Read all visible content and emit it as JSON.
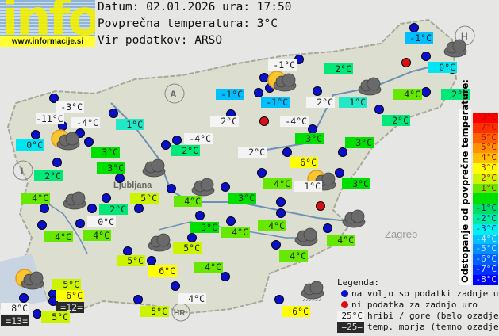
{
  "logo": {
    "text": "info",
    "url": "www.informacije.si"
  },
  "header": {
    "date_line": "Datum: 02.01.2026 ura: 17:50",
    "avg_line": "Povprečna temperatura: 3°C",
    "source_line": "Vir podatkov: ARSO"
  },
  "map_labels": [
    "A",
    "I",
    "H",
    "HR",
    "Ljubljana",
    "Zagreb"
  ],
  "stations": [
    {
      "temp": "-1°C",
      "type": "normal"
    },
    {
      "temp": "-1°C",
      "type": "hill"
    },
    {
      "temp": "2°C",
      "type": "normal"
    },
    {
      "temp": "0°C",
      "type": "normal"
    },
    {
      "temp": "-1°C",
      "type": "normal"
    },
    {
      "temp": "-1°C",
      "type": "normal"
    },
    {
      "temp": "2°C",
      "type": "hill"
    },
    {
      "temp": "1°C",
      "type": "normal"
    },
    {
      "temp": "4°C",
      "type": "normal"
    },
    {
      "temp": "2°C",
      "type": "normal"
    },
    {
      "temp": "-3°C",
      "type": "hill"
    },
    {
      "temp": "-11°C",
      "type": "hill"
    },
    {
      "temp": "-4°C",
      "type": "hill"
    },
    {
      "temp": "1°C",
      "type": "normal"
    },
    {
      "temp": "2°C",
      "type": "hill"
    },
    {
      "temp": "-4°C",
      "type": "hill"
    },
    {
      "temp": "2°C",
      "type": "normal"
    },
    {
      "temp": "0°C",
      "type": "normal"
    },
    {
      "temp": "3°C",
      "type": "normal"
    },
    {
      "temp": "2°C",
      "type": "normal"
    },
    {
      "temp": "-4°C",
      "type": "hill"
    },
    {
      "temp": "3°C",
      "type": "normal"
    },
    {
      "temp": "3°C",
      "type": "normal"
    },
    {
      "temp": "2°C",
      "type": "hill"
    },
    {
      "temp": "6°C",
      "type": "normal"
    },
    {
      "temp": "3°C",
      "type": "normal"
    },
    {
      "temp": "2°C",
      "type": "normal"
    },
    {
      "temp": "4°C",
      "type": "normal"
    },
    {
      "temp": "1°C",
      "type": "hill"
    },
    {
      "temp": "3°C",
      "type": "normal"
    },
    {
      "temp": "4°C",
      "type": "normal"
    },
    {
      "temp": "5°C",
      "type": "normal"
    },
    {
      "temp": "4°C",
      "type": "normal"
    },
    {
      "temp": "3°C",
      "type": "normal"
    },
    {
      "temp": "2°C",
      "type": "normal"
    },
    {
      "temp": "0°C",
      "type": "hill"
    },
    {
      "temp": "4°C",
      "type": "normal"
    },
    {
      "temp": "4°C",
      "type": "normal"
    },
    {
      "temp": "3°C",
      "type": "normal"
    },
    {
      "temp": "4°C",
      "type": "normal"
    },
    {
      "temp": "4°C",
      "type": "normal"
    },
    {
      "temp": "4°C",
      "type": "normal"
    },
    {
      "temp": "4°C",
      "type": "normal"
    },
    {
      "temp": "5°C",
      "type": "normal"
    },
    {
      "temp": "5°C",
      "type": "normal"
    },
    {
      "temp": "6°C",
      "type": "normal"
    },
    {
      "temp": "4°C",
      "type": "normal"
    },
    {
      "temp": "5°C",
      "type": "normal"
    },
    {
      "temp": "6°C",
      "type": "normal"
    },
    {
      "temp": "=12=",
      "type": "sea"
    },
    {
      "temp": "8°C",
      "type": "hill"
    },
    {
      "temp": "=13=",
      "type": "sea"
    },
    {
      "temp": "5°C",
      "type": "normal"
    },
    {
      "temp": "4°C",
      "type": "hill"
    },
    {
      "temp": "5°C",
      "type": "normal"
    },
    {
      "temp": "6°C",
      "type": "normal"
    }
  ],
  "weather_icons": [
    "cloudy",
    "cloudy",
    "sun-cloud",
    "cloudy",
    "sun-cloud",
    "cloudy",
    "cloudy",
    "sun-cloud",
    "cloudy",
    "cloudy",
    "cloudy",
    "sun-cloud",
    "rain"
  ],
  "scale": {
    "title": "Odstopanje od povprečne temperature:",
    "steps": [
      {
        "label": "8°C",
        "color": "#ff0000"
      },
      {
        "label": "7°C",
        "color": "#ff3000"
      },
      {
        "label": "6°C",
        "color": "#ff6000"
      },
      {
        "label": "5°C",
        "color": "#ff9000"
      },
      {
        "label": "4°C",
        "color": "#ffc000"
      },
      {
        "label": "3°C",
        "color": "#ffff00"
      },
      {
        "label": "2°C",
        "color": "#ccf400"
      },
      {
        "label": "1°C",
        "color": "#66e800"
      },
      {
        "label": "",
        "color": "#00e000"
      },
      {
        "label": "-1°C",
        "color": "#00e060"
      },
      {
        "label": "-2°C",
        "color": "#00eaa0"
      },
      {
        "label": "-3°C",
        "color": "#00f0f0"
      },
      {
        "label": "-4°C",
        "color": "#00c0ff"
      },
      {
        "label": "-5°C",
        "color": "#0090ff"
      },
      {
        "label": "-6°C",
        "color": "#0060ff"
      },
      {
        "label": "-7°C",
        "color": "#0030ff"
      },
      {
        "label": "-8°C",
        "color": "#0000ff"
      }
    ]
  },
  "legend": {
    "title": "Legenda:",
    "blue_dot": "na voljo so podatki zadnje ure",
    "red_dot": "ni podatka za zadnjo uro",
    "hill_sample": "25°C",
    "hill_text": "hribi / gore (belo ozadje)",
    "sea_sample": "=25=",
    "sea_text": "temp. morja (temno ozadje)",
    "blue": "#0a10c8",
    "red": "#d81010"
  }
}
